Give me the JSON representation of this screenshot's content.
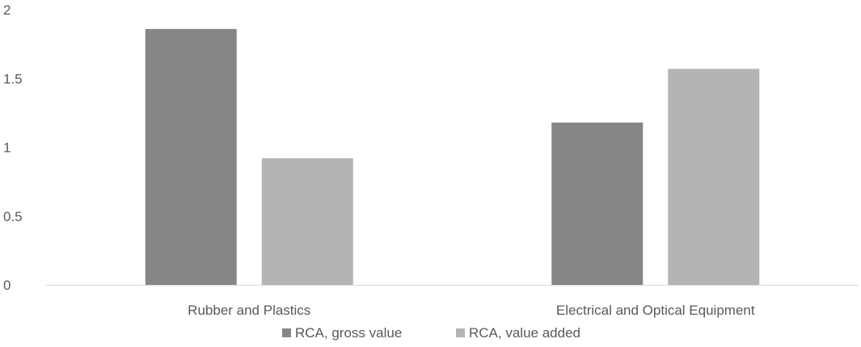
{
  "chart_data": {
    "type": "bar",
    "categories": [
      "Rubber and Plastics",
      "Electrical and Optical Equipment"
    ],
    "series": [
      {
        "name": "RCA, gross value",
        "values": [
          1.86,
          1.18
        ],
        "color": "#868686"
      },
      {
        "name": "RCA, value added",
        "values": [
          0.92,
          1.57
        ],
        "color": "#b4b4b4"
      }
    ],
    "ylim": [
      0,
      2
    ],
    "yticks": [
      0,
      0.5,
      1,
      1.5,
      2
    ],
    "ytick_labels": [
      "0",
      "0.5",
      "1",
      "1.5",
      "2"
    ],
    "grid": false,
    "legend": "bottom",
    "axis_color": "#d9d9d9",
    "text_color": "#595959"
  }
}
